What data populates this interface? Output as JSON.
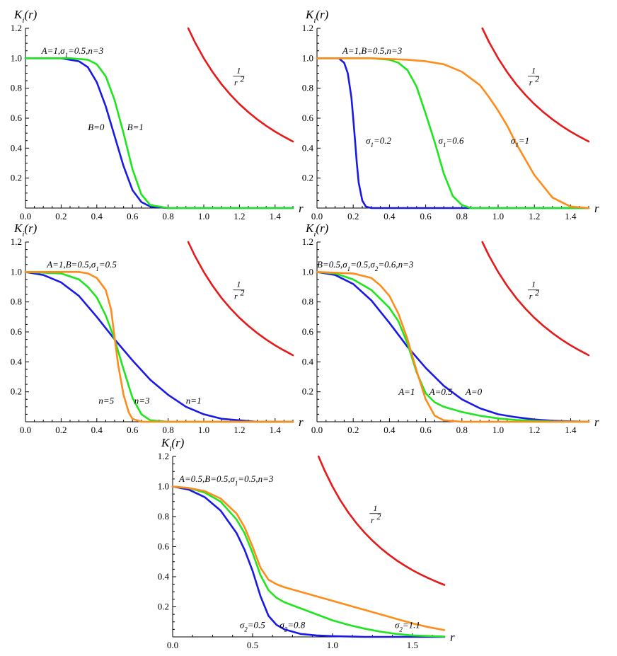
{
  "colors": {
    "blue": "#1a1ae6",
    "green": "#1ee61e",
    "orange": "#ff8c1a",
    "red": "#e61a1a"
  },
  "chart_data": [
    {
      "id": "p1",
      "type": "line",
      "title": "",
      "ylabel": "K_i(r)",
      "xlabel": "r",
      "xlim": [
        0,
        1.5
      ],
      "ylim": [
        0,
        1.2
      ],
      "xticks": [
        "0.0",
        "0.2",
        "0.4",
        "0.6",
        "0.8",
        "1.0",
        "1.2",
        "1.4"
      ],
      "yticks": [
        "0.2",
        "0.4",
        "0.6",
        "0.8",
        "1.0",
        "1.2"
      ],
      "params": "A=1,σ1=0.5,n=3",
      "series": [
        {
          "name": "B=0",
          "color": "blue",
          "x": [
            0,
            0.2,
            0.3,
            0.35,
            0.4,
            0.45,
            0.5,
            0.55,
            0.6,
            0.65,
            0.7,
            0.8,
            1.5
          ],
          "y": [
            1.0,
            1.0,
            0.98,
            0.94,
            0.84,
            0.68,
            0.48,
            0.28,
            0.12,
            0.04,
            0.01,
            0.0,
            0.0
          ]
        },
        {
          "name": "B=1",
          "color": "green",
          "x": [
            0,
            0.25,
            0.35,
            0.4,
            0.45,
            0.5,
            0.55,
            0.6,
            0.65,
            0.7,
            0.8,
            1.5
          ],
          "y": [
            1.0,
            1.0,
            0.99,
            0.96,
            0.88,
            0.72,
            0.5,
            0.26,
            0.09,
            0.02,
            0.0,
            0.0
          ]
        },
        {
          "name": "1/r^2",
          "color": "red",
          "x": [
            0.913,
            0.95,
            1.0,
            1.05,
            1.1,
            1.15,
            1.2,
            1.25,
            1.3,
            1.35,
            1.4,
            1.45,
            1.5
          ],
          "y": [
            1.2,
            1.108,
            1.0,
            0.907,
            0.826,
            0.756,
            0.694,
            0.64,
            0.592,
            0.549,
            0.51,
            0.476,
            0.444
          ]
        }
      ],
      "annotations": [
        {
          "text": "A=1,σ1=0.5,n=3",
          "x": 0.09,
          "y": 1.03
        },
        {
          "text": "B=0",
          "x": 0.35,
          "y": 0.52
        },
        {
          "text": "B=1",
          "x": 0.57,
          "y": 0.52
        }
      ],
      "inv_label": {
        "num": "1",
        "den": "r",
        "exp": "2",
        "x": 1.18,
        "y": 0.88
      }
    },
    {
      "id": "p2",
      "type": "line",
      "title": "",
      "ylabel": "K_i(r)",
      "xlabel": "r",
      "xlim": [
        0,
        1.5
      ],
      "ylim": [
        0,
        1.2
      ],
      "xticks": [
        "0.0",
        "0.2",
        "0.4",
        "0.6",
        "0.8",
        "1.0",
        "1.2",
        "1.4"
      ],
      "yticks": [
        "0.2",
        "0.4",
        "0.6",
        "0.8",
        "1.0",
        "1.2"
      ],
      "params": "A=1,B=0.5,n=3",
      "series": [
        {
          "name": "σ1=0.2",
          "color": "blue",
          "x": [
            0,
            0.12,
            0.15,
            0.17,
            0.19,
            0.2,
            0.21,
            0.22,
            0.23,
            0.25,
            0.27,
            0.3,
            1.5
          ],
          "y": [
            1.0,
            1.0,
            0.97,
            0.9,
            0.74,
            0.6,
            0.45,
            0.3,
            0.17,
            0.05,
            0.01,
            0.0,
            0.0
          ]
        },
        {
          "name": "σ1=0.6",
          "color": "green",
          "x": [
            0,
            0.3,
            0.4,
            0.45,
            0.5,
            0.55,
            0.6,
            0.65,
            0.7,
            0.75,
            0.8,
            0.85,
            1.5
          ],
          "y": [
            1.0,
            1.0,
            0.99,
            0.97,
            0.92,
            0.81,
            0.63,
            0.44,
            0.23,
            0.08,
            0.02,
            0.0,
            0.0
          ]
        },
        {
          "name": "σ1=1",
          "color": "orange",
          "x": [
            0,
            0.3,
            0.5,
            0.6,
            0.7,
            0.8,
            0.9,
            0.95,
            1.0,
            1.05,
            1.1,
            1.2,
            1.3,
            1.4,
            1.5
          ],
          "y": [
            1.0,
            1.0,
            0.99,
            0.98,
            0.96,
            0.91,
            0.82,
            0.74,
            0.65,
            0.55,
            0.43,
            0.22,
            0.07,
            0.01,
            0.0
          ]
        },
        {
          "name": "1/r^2",
          "color": "red",
          "x": [
            0.913,
            0.95,
            1.0,
            1.05,
            1.1,
            1.15,
            1.2,
            1.25,
            1.3,
            1.35,
            1.4,
            1.45,
            1.5
          ],
          "y": [
            1.2,
            1.108,
            1.0,
            0.907,
            0.826,
            0.756,
            0.694,
            0.64,
            0.592,
            0.549,
            0.51,
            0.476,
            0.444
          ]
        }
      ],
      "annotations": [
        {
          "text": "A=1,B=0.5,n=3",
          "x": 0.14,
          "y": 1.03
        },
        {
          "text": "σ1=0.2",
          "x": 0.27,
          "y": 0.43
        },
        {
          "text": "σ1=0.6",
          "x": 0.67,
          "y": 0.43
        },
        {
          "text": "σ1=1",
          "x": 1.07,
          "y": 0.43
        }
      ],
      "inv_label": {
        "num": "1",
        "den": "r",
        "exp": "2",
        "x": 1.18,
        "y": 0.88
      }
    },
    {
      "id": "p3",
      "type": "line",
      "title": "",
      "ylabel": "K_i(r)",
      "xlabel": "r",
      "xlim": [
        0,
        1.5
      ],
      "ylim": [
        0,
        1.2
      ],
      "xticks": [
        "0.0",
        "0.2",
        "0.4",
        "0.6",
        "0.8",
        "1.0",
        "1.2",
        "1.4"
      ],
      "yticks": [
        "0.2",
        "0.4",
        "0.6",
        "0.8",
        "1.0",
        "1.2"
      ],
      "params": "A=1,B=0.5,σ1=0.5",
      "series": [
        {
          "name": "n=1",
          "color": "blue",
          "x": [
            0,
            0.1,
            0.2,
            0.3,
            0.4,
            0.5,
            0.6,
            0.7,
            0.8,
            0.9,
            1.0,
            1.1,
            1.2,
            1.3,
            1.5
          ],
          "y": [
            1.0,
            0.98,
            0.93,
            0.84,
            0.7,
            0.55,
            0.41,
            0.28,
            0.18,
            0.1,
            0.05,
            0.02,
            0.01,
            0.0,
            0.0
          ]
        },
        {
          "name": "n=3",
          "color": "green",
          "x": [
            0,
            0.2,
            0.3,
            0.35,
            0.4,
            0.45,
            0.5,
            0.55,
            0.6,
            0.65,
            0.7,
            0.8,
            1.5
          ],
          "y": [
            1.0,
            0.99,
            0.95,
            0.9,
            0.83,
            0.71,
            0.55,
            0.35,
            0.16,
            0.05,
            0.01,
            0.0,
            0.0
          ]
        },
        {
          "name": "n=5",
          "color": "orange",
          "x": [
            0,
            0.3,
            0.35,
            0.4,
            0.45,
            0.48,
            0.5,
            0.52,
            0.55,
            0.58,
            0.6,
            0.65,
            0.7,
            1.5
          ],
          "y": [
            1.0,
            1.0,
            0.99,
            0.96,
            0.88,
            0.75,
            0.56,
            0.38,
            0.18,
            0.06,
            0.02,
            0.0,
            0.0,
            0.0
          ]
        },
        {
          "name": "1/r^2",
          "color": "red",
          "x": [
            0.913,
            0.95,
            1.0,
            1.05,
            1.1,
            1.15,
            1.2,
            1.25,
            1.3,
            1.35,
            1.4,
            1.45,
            1.5
          ],
          "y": [
            1.2,
            1.108,
            1.0,
            0.907,
            0.826,
            0.756,
            0.694,
            0.64,
            0.592,
            0.549,
            0.51,
            0.476,
            0.444
          ]
        }
      ],
      "annotations": [
        {
          "text": "A=1,B=0.5,σ1=0.5",
          "x": 0.12,
          "y": 1.03
        },
        {
          "text": "n=5",
          "x": 0.41,
          "y": 0.12
        },
        {
          "text": "n=3",
          "x": 0.61,
          "y": 0.12
        },
        {
          "text": "n=1",
          "x": 0.9,
          "y": 0.12
        }
      ],
      "inv_label": {
        "num": "1",
        "den": "r",
        "exp": "2",
        "x": 1.18,
        "y": 0.88
      }
    },
    {
      "id": "p4",
      "type": "line",
      "title": "",
      "ylabel": "K_i(r)",
      "xlabel": "r",
      "xlim": [
        0,
        1.5
      ],
      "ylim": [
        0,
        1.2
      ],
      "xticks": [
        "0.0",
        "0.2",
        "0.4",
        "0.6",
        "0.8",
        "1.0",
        "1.2",
        "1.4"
      ],
      "yticks": [
        "0.2",
        "0.4",
        "0.6",
        "0.8",
        "1.0",
        "1.2"
      ],
      "params": "B=0.5,σ1=0.5,σ2=0.6,n=3",
      "series": [
        {
          "name": "A=0",
          "color": "blue",
          "x": [
            0,
            0.1,
            0.2,
            0.3,
            0.4,
            0.5,
            0.6,
            0.7,
            0.8,
            0.9,
            1.0,
            1.1,
            1.2,
            1.3,
            1.4,
            1.5
          ],
          "y": [
            1.0,
            0.98,
            0.92,
            0.81,
            0.66,
            0.5,
            0.36,
            0.24,
            0.15,
            0.09,
            0.05,
            0.03,
            0.015,
            0.007,
            0.003,
            0.0
          ]
        },
        {
          "name": "A=0.5",
          "color": "green",
          "x": [
            0,
            0.1,
            0.2,
            0.3,
            0.4,
            0.45,
            0.5,
            0.55,
            0.6,
            0.65,
            0.7,
            0.8,
            0.9,
            1.0,
            1.1,
            1.2,
            1.3,
            1.5
          ],
          "y": [
            1.0,
            0.99,
            0.95,
            0.88,
            0.76,
            0.67,
            0.52,
            0.33,
            0.19,
            0.13,
            0.1,
            0.065,
            0.04,
            0.022,
            0.012,
            0.006,
            0.002,
            0.0
          ]
        },
        {
          "name": "A=1",
          "color": "orange",
          "x": [
            0,
            0.2,
            0.3,
            0.35,
            0.4,
            0.45,
            0.5,
            0.55,
            0.6,
            0.65,
            0.7,
            0.8,
            1.5
          ],
          "y": [
            1.0,
            0.99,
            0.96,
            0.91,
            0.84,
            0.72,
            0.55,
            0.34,
            0.15,
            0.04,
            0.01,
            0.0,
            0.0
          ]
        },
        {
          "name": "1/r^2",
          "color": "red",
          "x": [
            0.913,
            0.95,
            1.0,
            1.05,
            1.1,
            1.15,
            1.2,
            1.25,
            1.3,
            1.35,
            1.4,
            1.45,
            1.5
          ],
          "y": [
            1.2,
            1.108,
            1.0,
            0.907,
            0.826,
            0.756,
            0.694,
            0.64,
            0.592,
            0.549,
            0.51,
            0.476,
            0.444
          ]
        }
      ],
      "annotations": [
        {
          "text": "B=0.5,σ1=0.5,σ2=0.6,n=3",
          "x": 0.0,
          "y": 1.03
        },
        {
          "text": "A=1",
          "x": 0.45,
          "y": 0.18
        },
        {
          "text": "A=0.5",
          "x": 0.62,
          "y": 0.18
        },
        {
          "text": "A=0",
          "x": 0.82,
          "y": 0.18
        }
      ],
      "inv_label": {
        "num": "1",
        "den": "r",
        "exp": "2",
        "x": 1.18,
        "y": 0.88
      }
    },
    {
      "id": "p5",
      "type": "line",
      "title": "",
      "ylabel": "K_i(r)",
      "xlabel": "r",
      "xlim": [
        0,
        1.7
      ],
      "ylim": [
        0,
        1.2
      ],
      "xticks": [
        "0.0",
        "0.5",
        "1.0",
        "1.5"
      ],
      "yticks": [
        "0.2",
        "0.4",
        "0.6",
        "0.8",
        "1.0",
        "1.2"
      ],
      "params": "A=0.5,B=0.5,σ1=0.5,n=3",
      "series": [
        {
          "name": "σ2=0.5",
          "color": "blue",
          "x": [
            0,
            0.1,
            0.2,
            0.3,
            0.4,
            0.45,
            0.5,
            0.55,
            0.6,
            0.65,
            0.7,
            0.8,
            0.9,
            1.0,
            1.2,
            1.7
          ],
          "y": [
            1.0,
            0.98,
            0.93,
            0.84,
            0.69,
            0.58,
            0.44,
            0.27,
            0.14,
            0.08,
            0.05,
            0.02,
            0.01,
            0.005,
            0.0,
            0.0
          ]
        },
        {
          "name": "σ2=0.8",
          "color": "green",
          "x": [
            0,
            0.1,
            0.2,
            0.3,
            0.4,
            0.45,
            0.5,
            0.55,
            0.6,
            0.65,
            0.7,
            0.8,
            0.9,
            1.0,
            1.1,
            1.2,
            1.3,
            1.4,
            1.5,
            1.7
          ],
          "y": [
            1.0,
            0.99,
            0.96,
            0.9,
            0.78,
            0.69,
            0.56,
            0.41,
            0.31,
            0.26,
            0.23,
            0.19,
            0.15,
            0.11,
            0.08,
            0.055,
            0.035,
            0.02,
            0.01,
            0.002
          ]
        },
        {
          "name": "σ2=1.1",
          "color": "orange",
          "x": [
            0,
            0.1,
            0.2,
            0.3,
            0.4,
            0.45,
            0.5,
            0.55,
            0.6,
            0.65,
            0.7,
            0.8,
            0.9,
            1.0,
            1.1,
            1.2,
            1.3,
            1.4,
            1.5,
            1.6,
            1.7
          ],
          "y": [
            1.0,
            0.99,
            0.97,
            0.92,
            0.82,
            0.73,
            0.6,
            0.46,
            0.38,
            0.35,
            0.33,
            0.3,
            0.27,
            0.24,
            0.21,
            0.18,
            0.15,
            0.12,
            0.09,
            0.065,
            0.045
          ]
        },
        {
          "name": "1/r^2",
          "color": "red",
          "x": [
            0.913,
            0.95,
            1.0,
            1.05,
            1.1,
            1.15,
            1.2,
            1.25,
            1.3,
            1.35,
            1.4,
            1.45,
            1.5,
            1.55,
            1.6,
            1.65,
            1.7
          ],
          "y": [
            1.2,
            1.108,
            1.0,
            0.907,
            0.826,
            0.756,
            0.694,
            0.64,
            0.592,
            0.549,
            0.51,
            0.476,
            0.444,
            0.416,
            0.391,
            0.367,
            0.346
          ]
        }
      ],
      "annotations": [
        {
          "text": "A=0.5,B=0.5,σ1=0.5,n=3",
          "x": 0.04,
          "y": 1.03
        },
        {
          "text": "σ2=0.5",
          "x": 0.42,
          "y": 0.06
        },
        {
          "text": "σ2=0.8",
          "x": 0.67,
          "y": 0.06
        },
        {
          "text": "σ2=1.1",
          "x": 1.39,
          "y": 0.06
        }
      ],
      "inv_label": {
        "num": "1",
        "den": "r",
        "exp": "2",
        "x": 1.25,
        "y": 0.82
      }
    }
  ]
}
